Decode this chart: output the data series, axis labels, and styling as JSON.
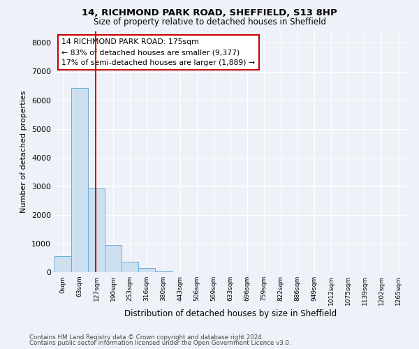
{
  "title_line1": "14, RICHMOND PARK ROAD, SHEFFIELD, S13 8HP",
  "title_line2": "Size of property relative to detached houses in Sheffield",
  "xlabel": "Distribution of detached houses by size in Sheffield",
  "ylabel": "Number of detached properties",
  "bar_color": "#cde0f0",
  "bar_edge_color": "#6aaed6",
  "background_color": "#eef2f8",
  "grid_color": "#ffffff",
  "vline_color": "#cc0000",
  "vline_x": 1.97,
  "annotation_text": "14 RICHMOND PARK ROAD: 175sqm\n← 83% of detached houses are smaller (9,377)\n17% of semi-detached houses are larger (1,889) →",
  "annotation_box_color": "#ffffff",
  "annotation_box_edge": "#cc0000",
  "categories": [
    "0sqm",
    "63sqm",
    "127sqm",
    "190sqm",
    "253sqm",
    "316sqm",
    "380sqm",
    "443sqm",
    "506sqm",
    "569sqm",
    "633sqm",
    "696sqm",
    "759sqm",
    "822sqm",
    "886sqm",
    "949sqm",
    "1012sqm",
    "1075sqm",
    "1139sqm",
    "1202sqm",
    "1265sqm"
  ],
  "values": [
    570,
    6430,
    2920,
    960,
    360,
    145,
    60,
    0,
    0,
    0,
    0,
    0,
    0,
    0,
    0,
    0,
    0,
    0,
    0,
    0,
    0
  ],
  "ylim": [
    0,
    8400
  ],
  "yticks": [
    0,
    1000,
    2000,
    3000,
    4000,
    5000,
    6000,
    7000,
    8000
  ],
  "footer_line1": "Contains HM Land Registry data © Crown copyright and database right 2024.",
  "footer_line2": "Contains public sector information licensed under the Open Government Licence v3.0."
}
